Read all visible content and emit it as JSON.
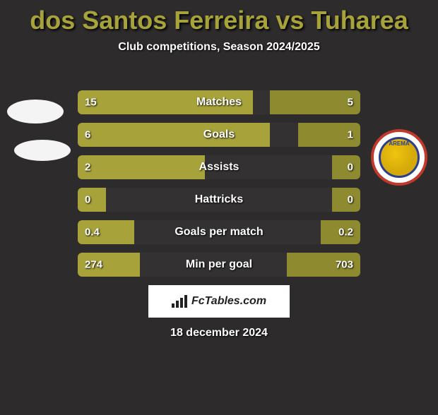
{
  "title": "dos Santos Ferreira vs Tuharea",
  "title_color": "#a7a33a",
  "subtitle": "Club competitions, Season 2024/2025",
  "background_color": "#2d2b2b",
  "accent_color": "#a7a33a",
  "accent_dark": "#8e8a2f",
  "track_color": "rgba(255,255,255,0.03)",
  "badges": {
    "left_top": {
      "type": "ellipse"
    },
    "left_bottom": {
      "type": "ellipse"
    },
    "right": {
      "label": "AREMA"
    }
  },
  "stats": [
    {
      "label": "Matches",
      "left_val": "15",
      "right_val": "5",
      "left_pct": 62,
      "right_pct": 32
    },
    {
      "label": "Goals",
      "left_val": "6",
      "right_val": "1",
      "left_pct": 68,
      "right_pct": 22
    },
    {
      "label": "Assists",
      "left_val": "2",
      "right_val": "0",
      "left_pct": 45,
      "right_pct": 10
    },
    {
      "label": "Hattricks",
      "left_val": "0",
      "right_val": "0",
      "left_pct": 10,
      "right_pct": 10
    },
    {
      "label": "Goals per match",
      "left_val": "0.4",
      "right_val": "0.2",
      "left_pct": 20,
      "right_pct": 14
    },
    {
      "label": "Min per goal",
      "left_val": "274",
      "right_val": "703",
      "left_pct": 22,
      "right_pct": 26
    }
  ],
  "logo_text": "FcTables.com",
  "date": "18 december 2024"
}
